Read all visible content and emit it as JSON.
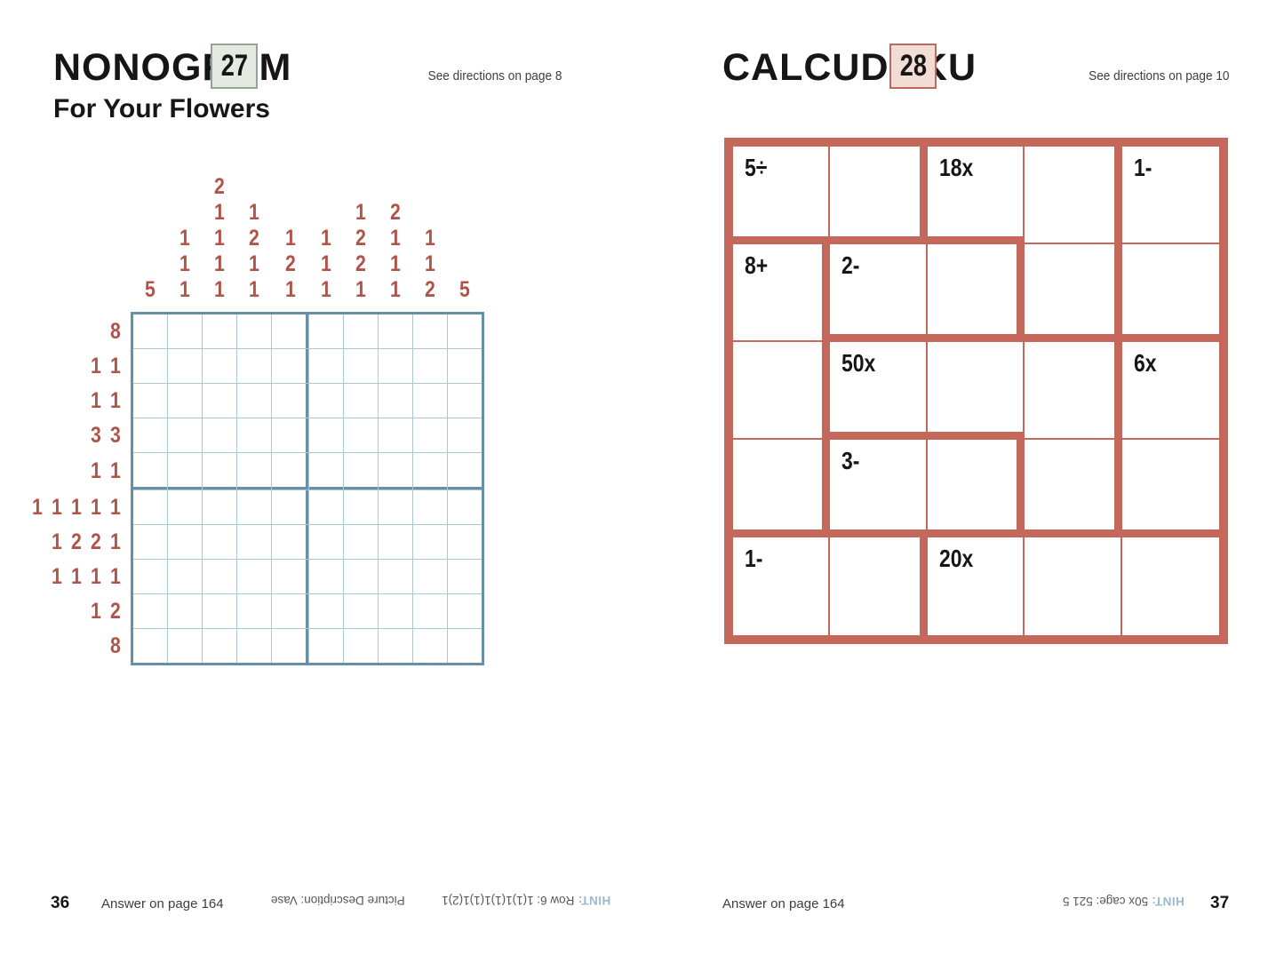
{
  "colors": {
    "brick": "#b0544a",
    "nono-thick": "#6590a6",
    "nono-thin": "#abc6d4",
    "cal-red": "#c4685c",
    "hint-blue": "#9db9cc"
  },
  "left_page": {
    "title": "NONOGRAM",
    "number": "27",
    "directions": "See directions on page 8",
    "subtitle": "For Your Flowers",
    "nonogram": {
      "size": 10,
      "col_clues": [
        [
          5
        ],
        [
          1,
          1,
          1
        ],
        [
          2,
          1,
          1,
          1,
          1
        ],
        [
          1,
          2,
          1,
          1
        ],
        [
          1,
          2,
          1
        ],
        [
          1,
          1,
          1
        ],
        [
          1,
          2,
          2,
          1
        ],
        [
          2,
          1,
          1,
          1
        ],
        [
          1,
          1,
          2
        ],
        [
          5
        ]
      ],
      "row_clues": [
        [
          8
        ],
        [
          1,
          1
        ],
        [
          1,
          1
        ],
        [
          3,
          3
        ],
        [
          1,
          1
        ],
        [
          1,
          1,
          1,
          1,
          1
        ],
        [
          1,
          2,
          2,
          1
        ],
        [
          1,
          1,
          1,
          1
        ],
        [
          1,
          2
        ],
        [
          8
        ]
      ]
    },
    "footer": {
      "page_number": "36",
      "answer": "Answer on page 164",
      "hint_label": "HINT:",
      "hint_body": "Row 6: 1(1)1(1)1(1)1(2)1",
      "hint_body2": "Picture Description: Vase"
    }
  },
  "right_page": {
    "title": "CALCUDOKU",
    "number": "28",
    "directions": "See directions on page 10",
    "calcudoku": {
      "size": 5,
      "cages": [
        {
          "op": "5÷",
          "cells": [
            [
              1,
              1
            ],
            [
              1,
              2
            ]
          ]
        },
        {
          "op": "18x",
          "cells": [
            [
              1,
              3
            ],
            [
              1,
              4
            ],
            [
              2,
              4
            ]
          ]
        },
        {
          "op": "1-",
          "cells": [
            [
              1,
              5
            ],
            [
              2,
              5
            ]
          ]
        },
        {
          "op": "8+",
          "cells": [
            [
              2,
              1
            ],
            [
              3,
              1
            ],
            [
              4,
              1
            ]
          ]
        },
        {
          "op": "2-",
          "cells": [
            [
              2,
              2
            ],
            [
              2,
              3
            ]
          ]
        },
        {
          "op": "50x",
          "cells": [
            [
              3,
              2
            ],
            [
              3,
              3
            ],
            [
              3,
              4
            ],
            [
              4,
              4
            ]
          ]
        },
        {
          "op": "6x",
          "cells": [
            [
              3,
              5
            ],
            [
              4,
              5
            ]
          ]
        },
        {
          "op": "3-",
          "cells": [
            [
              4,
              2
            ],
            [
              4,
              3
            ]
          ]
        },
        {
          "op": "1-",
          "cells": [
            [
              5,
              1
            ],
            [
              5,
              2
            ]
          ]
        },
        {
          "op": "20x",
          "cells": [
            [
              5,
              3
            ],
            [
              5,
              4
            ],
            [
              5,
              5
            ]
          ]
        }
      ]
    },
    "footer": {
      "answer": "Answer on page 164",
      "hint_label": "HINT:",
      "hint_body": "50x cage: 521 5",
      "page_number": "37"
    }
  }
}
